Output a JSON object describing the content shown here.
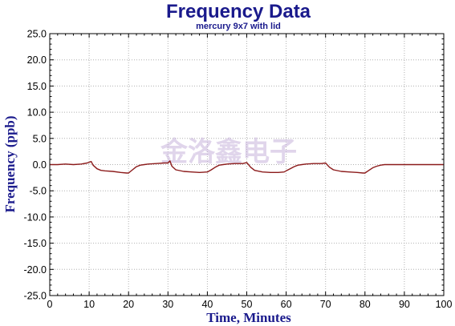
{
  "chart_data": {
    "type": "line",
    "title": "Frequency Data",
    "subtitle": "mercury 9x7 with lid",
    "xlabel": "Time, Minutes",
    "ylabel": "Frequency (ppb)",
    "xlim": [
      0,
      100
    ],
    "ylim": [
      -25,
      25
    ],
    "x_ticks": [
      0,
      10,
      20,
      30,
      40,
      50,
      60,
      70,
      80,
      90,
      100
    ],
    "x_tick_labels": [
      "0",
      "10",
      "20",
      "30",
      "40",
      "50",
      "60",
      "70",
      "80",
      "90",
      "100"
    ],
    "y_ticks": [
      -25,
      -20,
      -15,
      -10,
      -5,
      0,
      5,
      10,
      15,
      20,
      25
    ],
    "y_tick_labels": [
      "-25.0",
      "-20.0",
      "-15.0",
      "-10.0",
      "-5.0",
      "0.0",
      "5.0",
      "10.0",
      "15.0",
      "20.0",
      "25.0"
    ],
    "grid": true,
    "watermark": "金洛鑫电子",
    "colors": {
      "line": "#8b1a1a",
      "title": "#1a1a8c",
      "subtitle": "#1a1a8c",
      "axis_labels": "#1a1a8c",
      "watermark": "#c8b4dc",
      "grid": "#b0b0b0"
    },
    "series": [
      {
        "x": [
          0,
          2,
          4,
          6,
          8,
          9.5,
          10.5,
          11,
          12,
          13,
          14,
          16,
          18,
          19.5,
          20,
          21,
          22,
          23,
          24,
          25,
          27,
          29,
          30,
          30.5,
          31,
          32,
          34,
          36,
          38,
          40,
          41,
          42,
          43,
          44,
          45,
          47,
          49,
          50,
          51,
          52,
          54,
          56,
          58,
          59.5,
          60,
          61,
          62,
          63,
          64,
          65,
          67,
          69,
          70,
          71,
          72,
          74,
          76,
          78,
          79.5,
          80,
          81,
          82,
          83,
          84,
          85,
          87,
          89,
          90,
          92,
          94,
          96,
          98,
          100
        ],
        "y": [
          0.0,
          0.0,
          0.1,
          0.0,
          0.1,
          0.3,
          0.6,
          -0.1,
          -0.8,
          -1.1,
          -1.2,
          -1.3,
          -1.5,
          -1.6,
          -1.6,
          -1.0,
          -0.4,
          -0.1,
          0.0,
          0.1,
          0.2,
          0.3,
          0.3,
          0.7,
          -0.3,
          -1.0,
          -1.3,
          -1.4,
          -1.5,
          -1.4,
          -1.0,
          -0.5,
          -0.1,
          0.0,
          0.1,
          0.2,
          0.2,
          0.4,
          -0.5,
          -1.1,
          -1.4,
          -1.5,
          -1.5,
          -1.4,
          -1.2,
          -0.8,
          -0.4,
          -0.1,
          0.0,
          0.1,
          0.2,
          0.2,
          0.3,
          -0.5,
          -1.0,
          -1.3,
          -1.4,
          -1.5,
          -1.6,
          -1.6,
          -1.1,
          -0.6,
          -0.3,
          -0.1,
          0.0,
          0.0,
          0.0,
          0.0,
          0.0,
          0.0,
          0.0,
          0.0,
          0.0
        ]
      }
    ]
  }
}
